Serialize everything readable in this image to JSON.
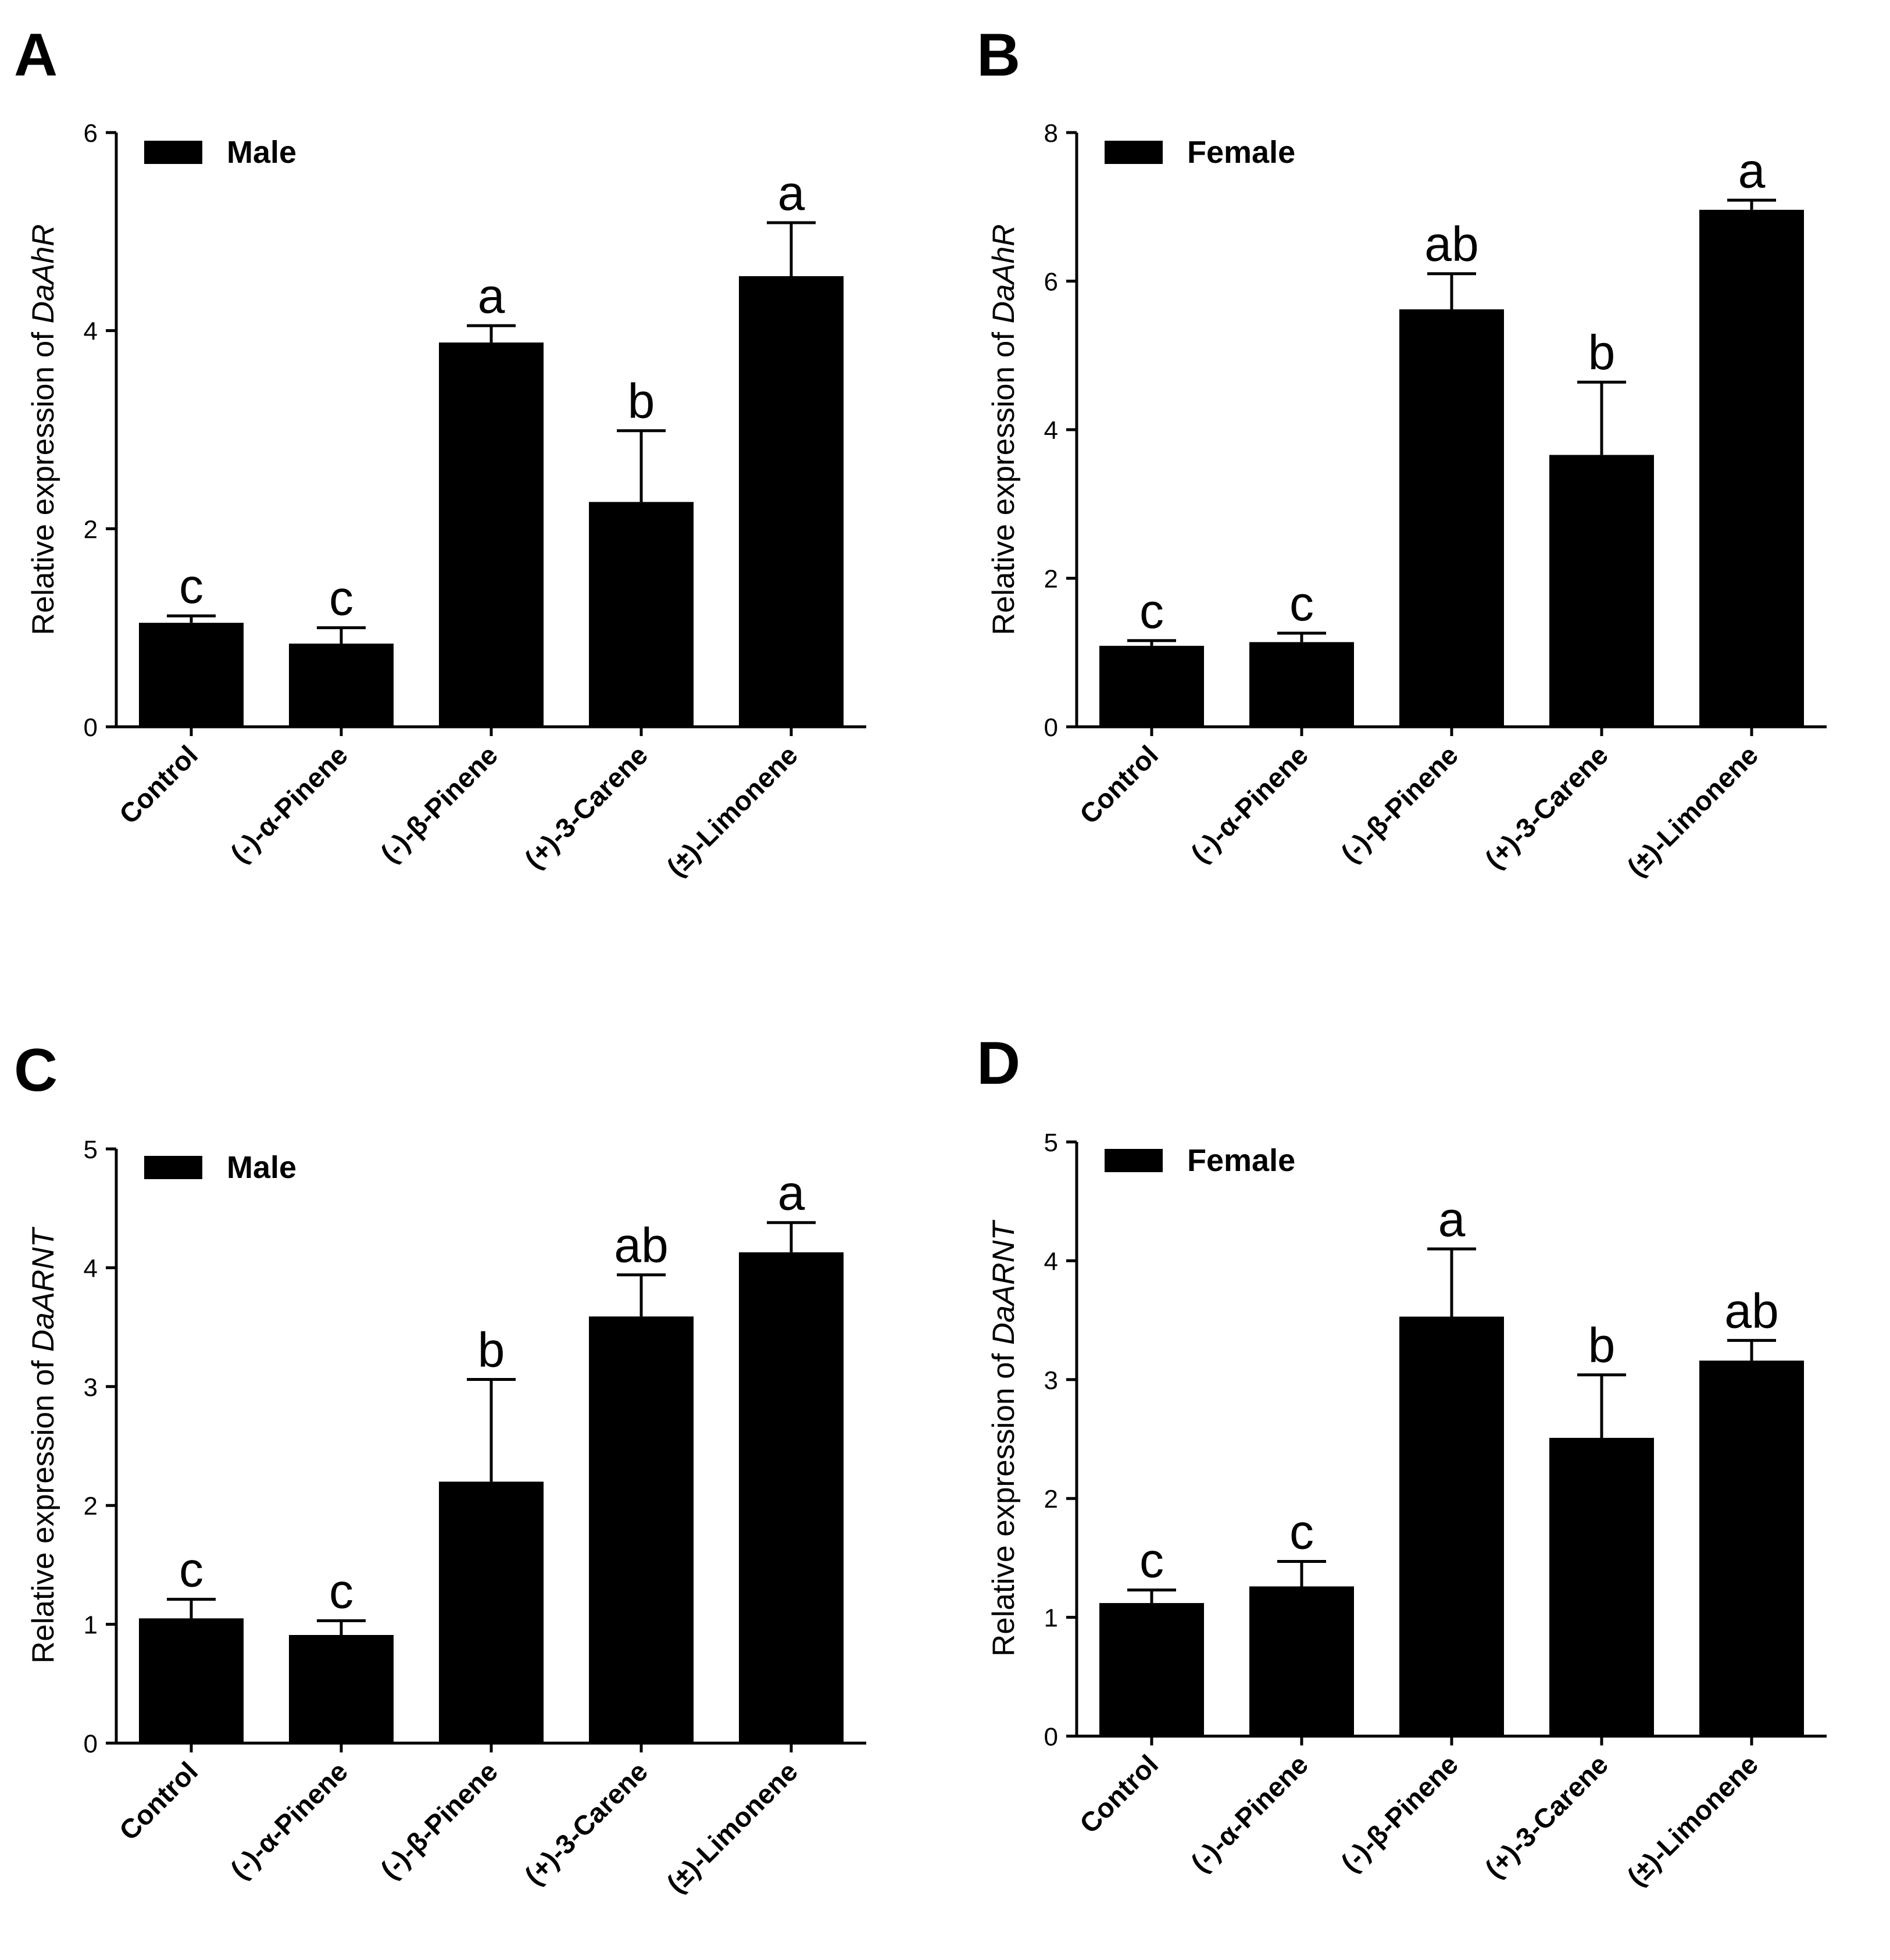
{
  "chart_data": [
    {
      "panel": "A",
      "type": "bar",
      "legend": "Male",
      "ylabel": "Relative expression of ",
      "ylabel_gene": "DaAhR",
      "categories": [
        "Control",
        "(-)-α-Pinene",
        "(-)-β-Pinene",
        "(+)-3-Carene",
        "(±)-Limonene"
      ],
      "values": [
        1.05,
        0.84,
        3.88,
        2.27,
        4.55
      ],
      "errors": [
        0.07,
        0.16,
        0.17,
        0.72,
        0.54
      ],
      "significance": [
        "c",
        "c",
        "a",
        "b",
        "a"
      ],
      "ylim": [
        0,
        6
      ],
      "yticks": [
        0,
        2,
        4,
        6
      ]
    },
    {
      "panel": "B",
      "type": "bar",
      "legend": "Female",
      "ylabel": "Relative expression of ",
      "ylabel_gene": "DaAhR",
      "categories": [
        "Control",
        "(-)-α-Pinene",
        "(-)-β-Pinene",
        "(+)-3-Carene",
        "(±)-Limonene"
      ],
      "values": [
        1.09,
        1.14,
        5.62,
        3.66,
        6.96
      ],
      "errors": [
        0.07,
        0.12,
        0.48,
        0.98,
        0.13
      ],
      "significance": [
        "c",
        "c",
        "ab",
        "b",
        "a"
      ],
      "ylim": [
        0,
        8
      ],
      "yticks": [
        0,
        2,
        4,
        6,
        8
      ]
    },
    {
      "panel": "C",
      "type": "bar",
      "legend": "Male",
      "ylabel": "Relative expression of ",
      "ylabel_gene": "DaARNT",
      "categories": [
        "Control",
        "(-)-α-Pinene",
        "(-)-β-Pinene",
        "(+)-3-Carene",
        "(±)-Limonene"
      ],
      "values": [
        1.05,
        0.91,
        2.2,
        3.59,
        4.13
      ],
      "errors": [
        0.16,
        0.12,
        0.86,
        0.35,
        0.25
      ],
      "significance": [
        "c",
        "c",
        "b",
        "ab",
        "a"
      ],
      "ylim": [
        0,
        5
      ],
      "yticks": [
        0,
        1,
        2,
        3,
        4,
        5
      ]
    },
    {
      "panel": "D",
      "type": "bar",
      "legend": "Female",
      "ylabel": "Relative expression of ",
      "ylabel_gene": "DaARNT",
      "categories": [
        "Control",
        "(-)-α-Pinene",
        "(-)-β-Pinene",
        "(+)-3-Carene",
        "(±)-Limonene"
      ],
      "values": [
        1.12,
        1.26,
        3.53,
        2.51,
        3.16
      ],
      "errors": [
        0.11,
        0.21,
        0.57,
        0.53,
        0.17
      ],
      "significance": [
        "c",
        "c",
        "a",
        "b",
        "ab"
      ],
      "ylim": [
        0,
        5
      ],
      "yticks": [
        0,
        1,
        2,
        3,
        4,
        5
      ]
    }
  ]
}
